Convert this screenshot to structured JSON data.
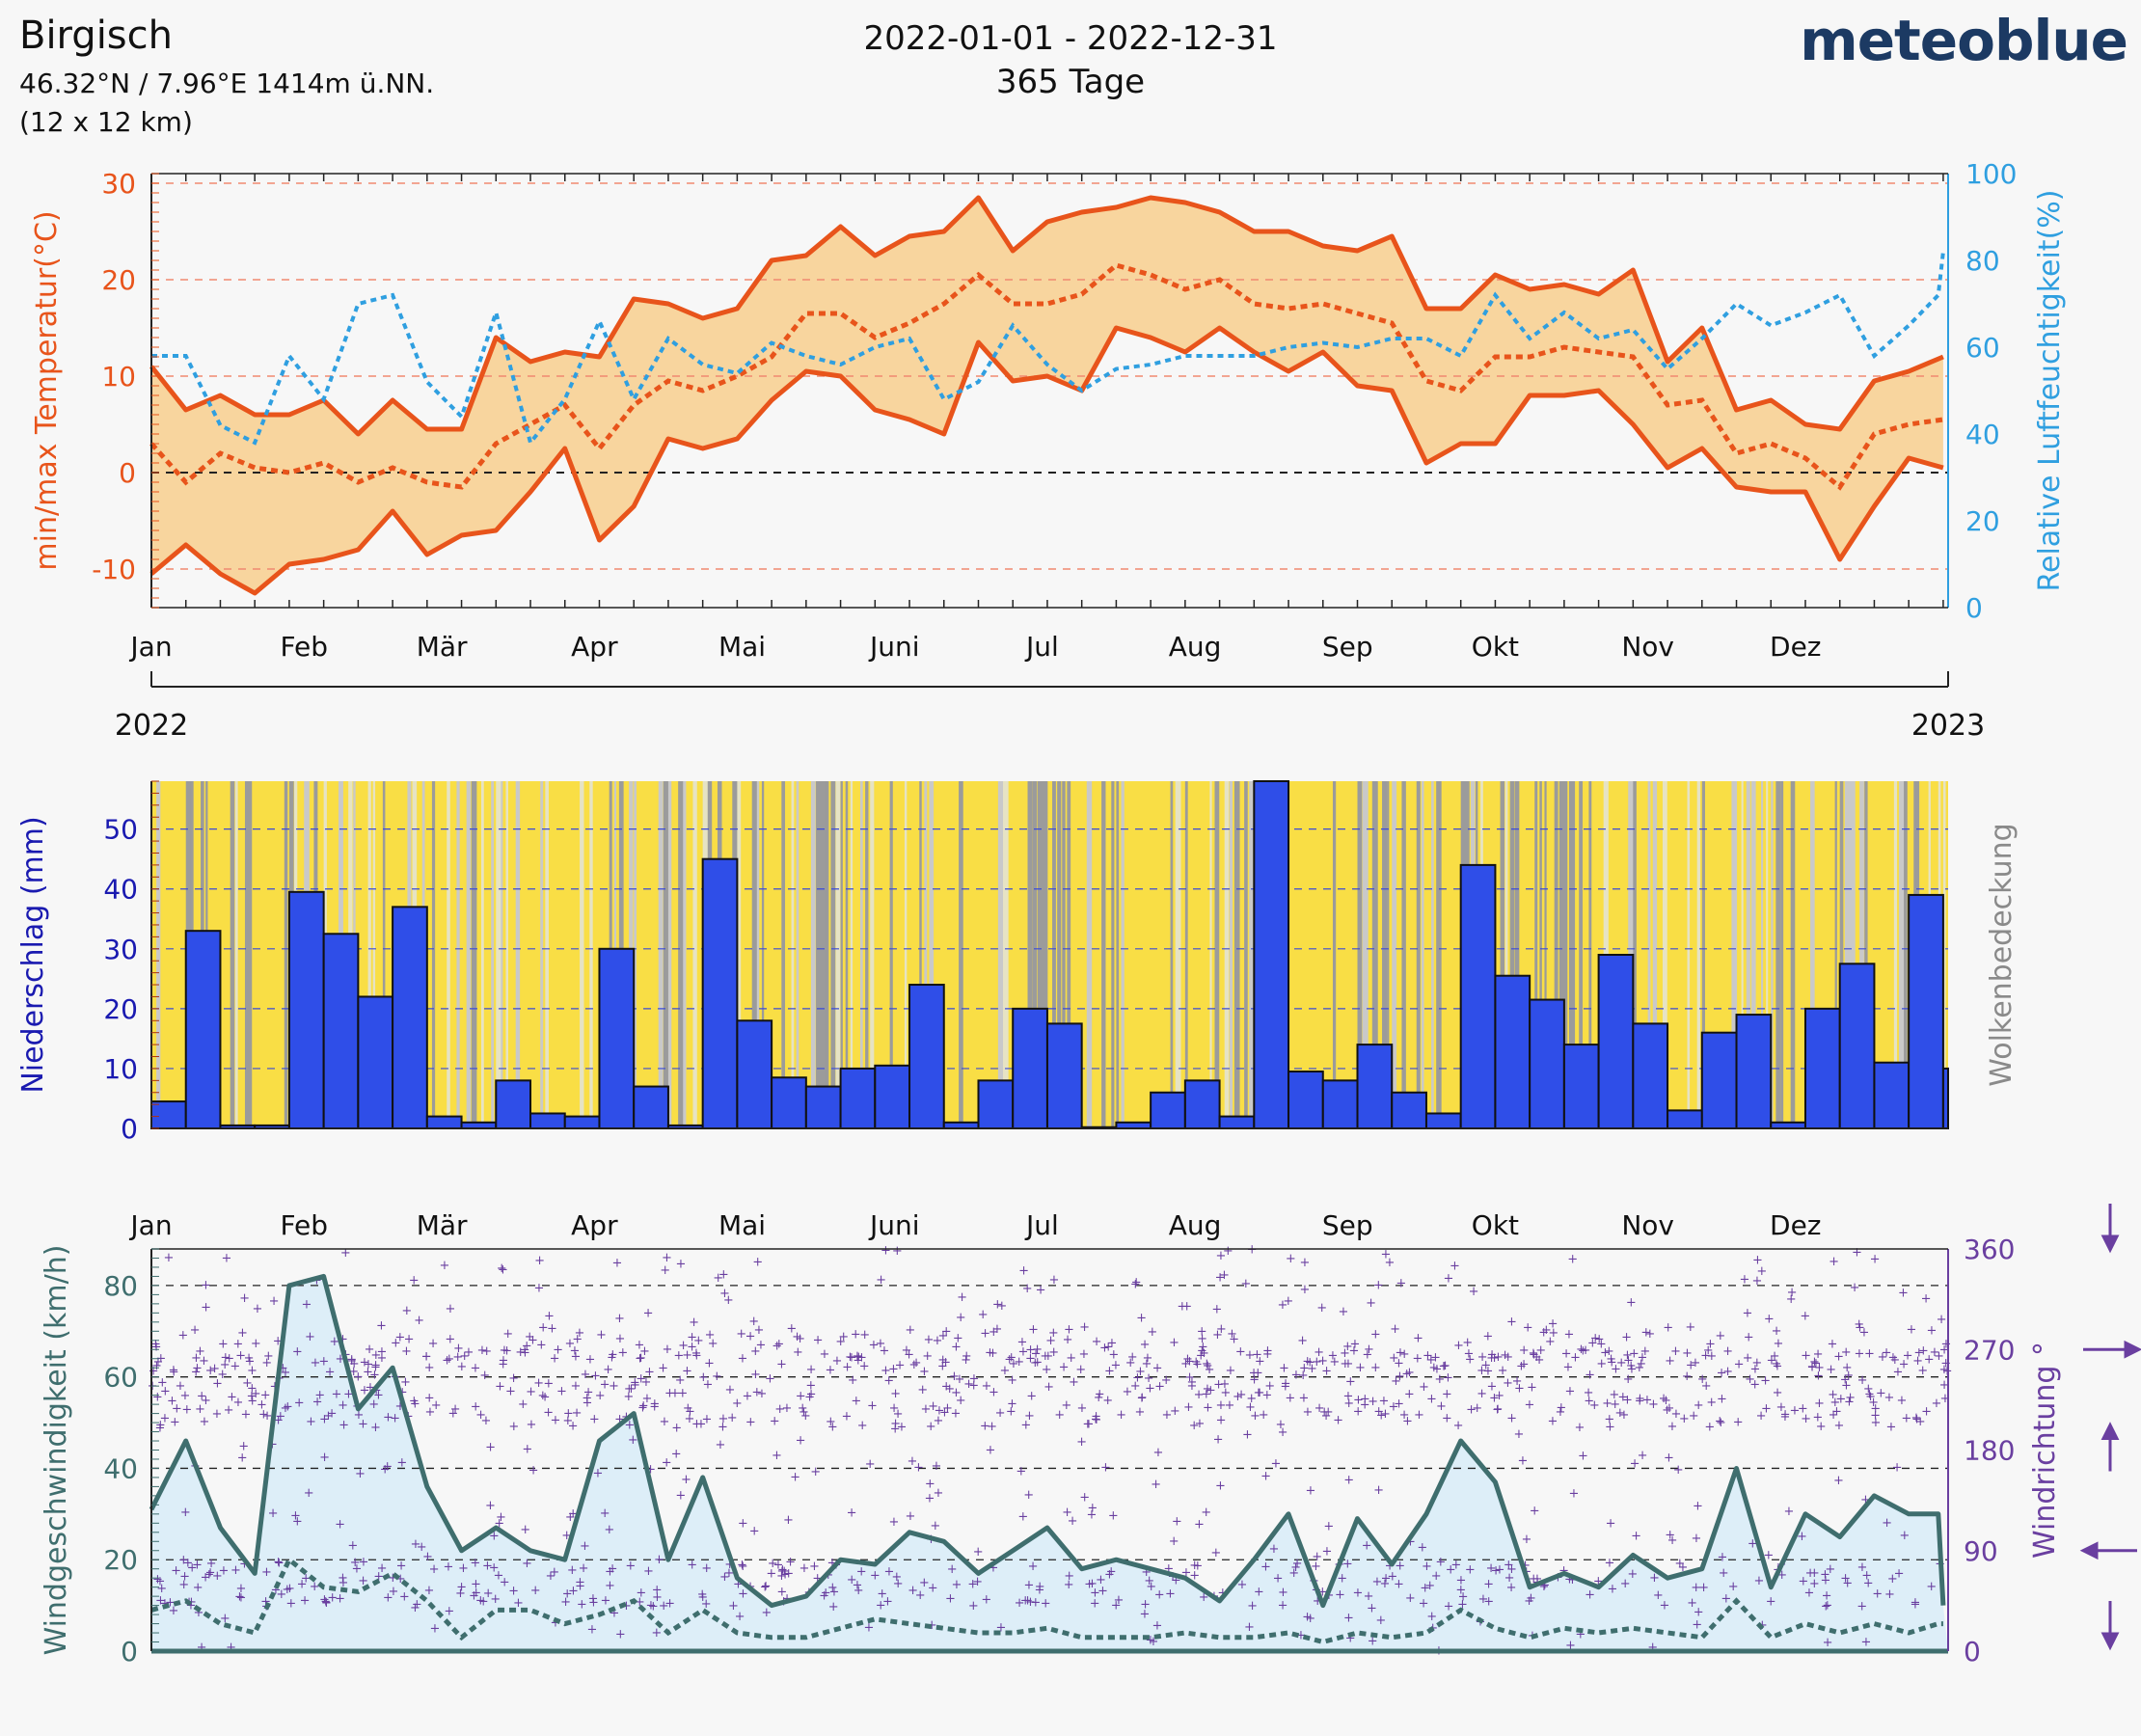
{
  "header": {
    "location": "Birgisch",
    "coordinates": "46.32°N / 7.96°E   1414m ü.NN.",
    "grid": "(12 x 12 km)",
    "period": "2022-01-01 - 2022-12-31",
    "days": "365 Tage",
    "brand": "meteoblue"
  },
  "months": [
    "Jan",
    "Feb",
    "Mär",
    "Apr",
    "Mai",
    "Juni",
    "Jul",
    "Aug",
    "Sep",
    "Okt",
    "Nov",
    "Dez"
  ],
  "years": {
    "start": "2022",
    "end": "2023"
  },
  "colors": {
    "temperature": "#e8541b",
    "temperature_band": "#f8d59e",
    "humidity": "#2f9fe0",
    "precipitation": "#2f4ee8",
    "precip_axis": "#1a1ab0",
    "cloud_axis": "#8a8a8a",
    "wind": "#3f6e6e",
    "wind_band": "#ddeef8",
    "direction": "#6a3fa0"
  },
  "chart_data": [
    {
      "type": "area",
      "name": "temperature-humidity",
      "ylabel": "min/max Temperatur(°C)",
      "y2label": "Relative Luftfeuchtigkeit(%)",
      "ylim": [
        -14,
        31
      ],
      "y2lim": [
        0,
        100
      ],
      "yticks": [
        -10,
        0,
        10,
        20,
        30
      ],
      "y2ticks": [
        0,
        20,
        40,
        60,
        80,
        100
      ],
      "series": [
        {
          "name": "max",
          "x": [
            1,
            8,
            15,
            22,
            29,
            36,
            43,
            50,
            57,
            64,
            71,
            78,
            85,
            92,
            99,
            106,
            113,
            120,
            127,
            134,
            141,
            148,
            155,
            162,
            169,
            176,
            183,
            190,
            197,
            204,
            211,
            218,
            225,
            232,
            239,
            246,
            253,
            260,
            267,
            274,
            281,
            288,
            295,
            302,
            309,
            316,
            323,
            330,
            337,
            344,
            351,
            358,
            365
          ],
          "values": [
            11,
            6.5,
            8,
            6,
            6,
            7.5,
            4,
            7.5,
            4.5,
            4.5,
            14,
            11.5,
            12.5,
            12,
            18,
            17.5,
            16,
            17,
            22,
            22.5,
            25.5,
            22.5,
            24.5,
            25,
            28.5,
            23,
            26,
            27,
            27.5,
            28.5,
            28,
            27,
            25,
            25,
            23.5,
            23,
            24.5,
            17,
            17,
            20.5,
            19,
            19.5,
            18.5,
            21,
            11.5,
            15,
            6.5,
            7.5,
            5,
            4.5,
            9.5,
            10.5,
            12
          ]
        },
        {
          "name": "mean",
          "x": [
            1,
            8,
            15,
            22,
            29,
            36,
            43,
            50,
            57,
            64,
            71,
            78,
            85,
            92,
            99,
            106,
            113,
            120,
            127,
            134,
            141,
            148,
            155,
            162,
            169,
            176,
            183,
            190,
            197,
            204,
            211,
            218,
            225,
            232,
            239,
            246,
            253,
            260,
            267,
            274,
            281,
            288,
            295,
            302,
            309,
            316,
            323,
            330,
            337,
            344,
            351,
            358,
            365
          ],
          "values": [
            3,
            -1,
            2,
            0.5,
            0,
            1,
            -1,
            0.5,
            -1,
            -1.5,
            3,
            5,
            7,
            2.5,
            7,
            9.5,
            8.5,
            10,
            12,
            16.5,
            16.5,
            14,
            15.5,
            17.5,
            20.5,
            17.5,
            17.5,
            18.5,
            21.5,
            20.5,
            19,
            20,
            17.5,
            17,
            17.5,
            16.5,
            15.5,
            9.5,
            8.5,
            12,
            12,
            13,
            12.5,
            12,
            7,
            7.5,
            2,
            3,
            1.5,
            -1.5,
            4,
            5,
            5.5
          ]
        },
        {
          "name": "min",
          "x": [
            1,
            8,
            15,
            22,
            29,
            36,
            43,
            50,
            57,
            64,
            71,
            78,
            85,
            92,
            99,
            106,
            113,
            120,
            127,
            134,
            141,
            148,
            155,
            162,
            169,
            176,
            183,
            190,
            197,
            204,
            211,
            218,
            225,
            232,
            239,
            246,
            253,
            260,
            267,
            274,
            281,
            288,
            295,
            302,
            309,
            316,
            323,
            330,
            337,
            344,
            351,
            358,
            365
          ],
          "values": [
            -10.5,
            -7.5,
            -10.5,
            -12.5,
            -9.5,
            -9,
            -8,
            -4,
            -8.5,
            -6.5,
            -6,
            -2,
            2.5,
            -7,
            -3.5,
            3.5,
            2.5,
            3.5,
            7.5,
            10.5,
            10,
            6.5,
            5.5,
            4,
            13.5,
            9.5,
            10,
            8.5,
            15,
            14,
            12.5,
            15,
            12.5,
            10.5,
            12.5,
            9,
            8.5,
            1,
            3,
            3,
            8,
            8,
            8.5,
            5,
            0.5,
            2.5,
            -1.5,
            -2,
            -2,
            -9,
            -3.5,
            1.5,
            0.5
          ]
        },
        {
          "name": "humidity",
          "axis": "right",
          "x": [
            1,
            8,
            15,
            22,
            29,
            36,
            43,
            50,
            57,
            64,
            71,
            78,
            85,
            92,
            99,
            106,
            113,
            120,
            127,
            134,
            141,
            148,
            155,
            162,
            169,
            176,
            183,
            190,
            197,
            204,
            211,
            218,
            225,
            232,
            239,
            246,
            253,
            260,
            267,
            274,
            281,
            288,
            295,
            302,
            309,
            316,
            323,
            330,
            337,
            344,
            351,
            358,
            364,
            365
          ],
          "values": [
            58,
            58,
            42,
            38,
            58,
            48,
            70,
            72,
            52,
            44,
            68,
            38,
            48,
            66,
            48,
            62,
            56,
            54,
            61,
            58,
            56,
            60,
            62,
            48,
            52,
            65,
            56,
            50,
            55,
            56,
            58,
            58,
            58,
            60,
            61,
            60,
            62,
            62,
            58,
            72,
            62,
            68,
            62,
            64,
            55,
            62,
            70,
            65,
            68,
            72,
            58,
            65,
            72,
            82
          ]
        }
      ]
    },
    {
      "type": "bar",
      "name": "precipitation-cloud",
      "ylabel": "Niederschlag (mm)",
      "y2label": "Wolkenbedeckung",
      "ylim": [
        0,
        58
      ],
      "yticks": [
        0,
        10,
        20,
        30,
        40,
        50
      ],
      "week_start_day": [
        0,
        7,
        14,
        21,
        28,
        35,
        42,
        49,
        56,
        63,
        70,
        77,
        84,
        91,
        98,
        105,
        112,
        119,
        126,
        133,
        140,
        147,
        154,
        161,
        168,
        175,
        182,
        189,
        196,
        203,
        210,
        217,
        224,
        231,
        238,
        245,
        252,
        259,
        266,
        273,
        280,
        287,
        294,
        301,
        308,
        315,
        322,
        329,
        336,
        343,
        350,
        357,
        364
      ],
      "values": [
        4.5,
        33,
        0.5,
        0.5,
        39.5,
        32.5,
        22,
        37,
        2,
        1,
        8,
        2.5,
        2,
        30,
        7,
        0.5,
        45,
        18,
        8.5,
        7,
        10,
        10.5,
        24,
        1,
        8,
        20,
        17.5,
        0.2,
        1,
        6,
        8,
        2,
        58,
        9.5,
        8,
        14,
        6,
        2.5,
        44,
        25.5,
        21.5,
        14,
        29,
        17.5,
        3,
        16,
        19,
        1,
        20,
        27.5,
        11,
        39,
        10
      ]
    },
    {
      "type": "line",
      "name": "wind",
      "ylabel": "Windgeschwindigkeit (km/h)",
      "y2label": "Windrichtung °",
      "ylim": [
        0,
        88
      ],
      "y2lim": [
        0,
        360
      ],
      "yticks": [
        0,
        20,
        40,
        60,
        80
      ],
      "y2ticks": [
        0,
        90,
        180,
        270,
        360
      ],
      "series": [
        {
          "name": "max",
          "x": [
            1,
            8,
            15,
            22,
            29,
            36,
            43,
            50,
            57,
            64,
            71,
            78,
            85,
            92,
            99,
            106,
            113,
            120,
            127,
            134,
            141,
            148,
            155,
            162,
            169,
            176,
            183,
            190,
            197,
            204,
            211,
            218,
            225,
            232,
            239,
            246,
            253,
            260,
            267,
            274,
            281,
            288,
            295,
            302,
            309,
            316,
            323,
            330,
            337,
            344,
            351,
            358,
            364,
            365
          ],
          "values": [
            31,
            46,
            27,
            17,
            80,
            82,
            53,
            62,
            36,
            22,
            27,
            22,
            20,
            46,
            52,
            20,
            38,
            16,
            10,
            12,
            20,
            19,
            26,
            24,
            17,
            22,
            27,
            18,
            20,
            18,
            16,
            11,
            20,
            30,
            10,
            29,
            19,
            30,
            46,
            37,
            14,
            17,
            14,
            21,
            16,
            18,
            40,
            14,
            30,
            25,
            34,
            30,
            30,
            10
          ]
        },
        {
          "name": "mean",
          "x": [
            1,
            8,
            15,
            22,
            29,
            36,
            43,
            50,
            57,
            64,
            71,
            78,
            85,
            92,
            99,
            106,
            113,
            120,
            127,
            134,
            141,
            148,
            155,
            162,
            169,
            176,
            183,
            190,
            197,
            204,
            211,
            218,
            225,
            232,
            239,
            246,
            253,
            260,
            267,
            274,
            281,
            288,
            295,
            302,
            309,
            316,
            323,
            330,
            337,
            344,
            351,
            358,
            364,
            365
          ],
          "values": [
            9,
            11,
            6,
            4,
            20,
            14,
            13,
            17,
            11,
            3,
            9,
            9,
            6,
            8,
            11,
            4,
            9,
            4,
            3,
            3,
            5,
            7,
            6,
            5,
            4,
            4,
            5,
            3,
            3,
            3,
            4,
            3,
            3,
            4,
            2,
            4,
            3,
            4,
            9,
            5,
            3,
            5,
            4,
            5,
            4,
            3,
            11,
            3,
            6,
            4,
            6,
            4,
            6,
            6
          ]
        },
        {
          "name": "min",
          "x": [
            1,
            365
          ],
          "values": [
            0,
            0
          ]
        }
      ]
    }
  ]
}
